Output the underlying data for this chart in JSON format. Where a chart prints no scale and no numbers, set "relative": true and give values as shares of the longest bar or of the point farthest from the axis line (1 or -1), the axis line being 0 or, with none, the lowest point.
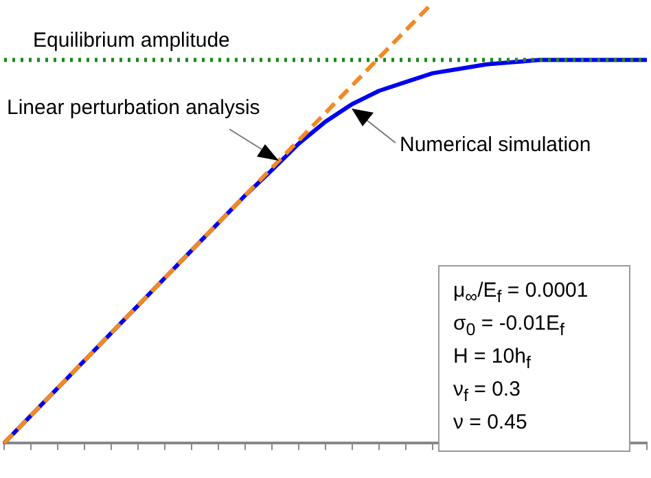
{
  "chart_data": {
    "type": "line",
    "relative": true,
    "grid": false,
    "legend": false,
    "marker": "none",
    "categories": [
      null,
      null,
      null,
      null,
      null,
      null,
      null,
      null,
      null,
      null,
      null,
      null,
      null,
      null,
      null,
      null,
      null,
      null,
      null,
      null,
      null,
      null,
      null,
      null,
      null
    ],
    "series": [
      {
        "color": "#0000ee",
        "line_style": "solid",
        "values": [
          0,
          0.0625,
          0.125,
          0.1875,
          0.25,
          0.3125,
          0.375,
          0.4375,
          0.5,
          0.5625,
          0.62,
          0.68,
          0.73,
          0.77,
          0.8,
          0.82,
          0.84,
          0.85,
          0.86,
          0.865,
          0.87,
          0.87,
          0.87,
          0.87,
          0.87
        ]
      },
      {
        "color": "#f08a24",
        "line_style": "dashed",
        "values": [
          0,
          0.0625,
          0.125,
          0.1875,
          0.25,
          0.3125,
          0.375,
          0.4375,
          0.5,
          0.5625,
          0.625,
          0.6875,
          0.75,
          0.8125,
          0.875,
          0.9375,
          1,
          null,
          null,
          null,
          null,
          null,
          null,
          null,
          null
        ]
      }
    ],
    "ref_lines": [
      {
        "axis": "y",
        "value": 0.87,
        "label": "Equilibrium amplitude",
        "color": "#1a8a1a",
        "line_style": "dotted"
      }
    ],
    "annotations": [
      "Linear perturbation analysis",
      "Numerical simulation",
      "μ$_{∞}$/E$_{f}$ = 0.0001",
      "σ$_{0}$ = -0.01E$_{f}$",
      "H = 10h$_{f}$",
      "ν$_{f}$ = 0.3",
      "ν = 0.45"
    ]
  }
}
